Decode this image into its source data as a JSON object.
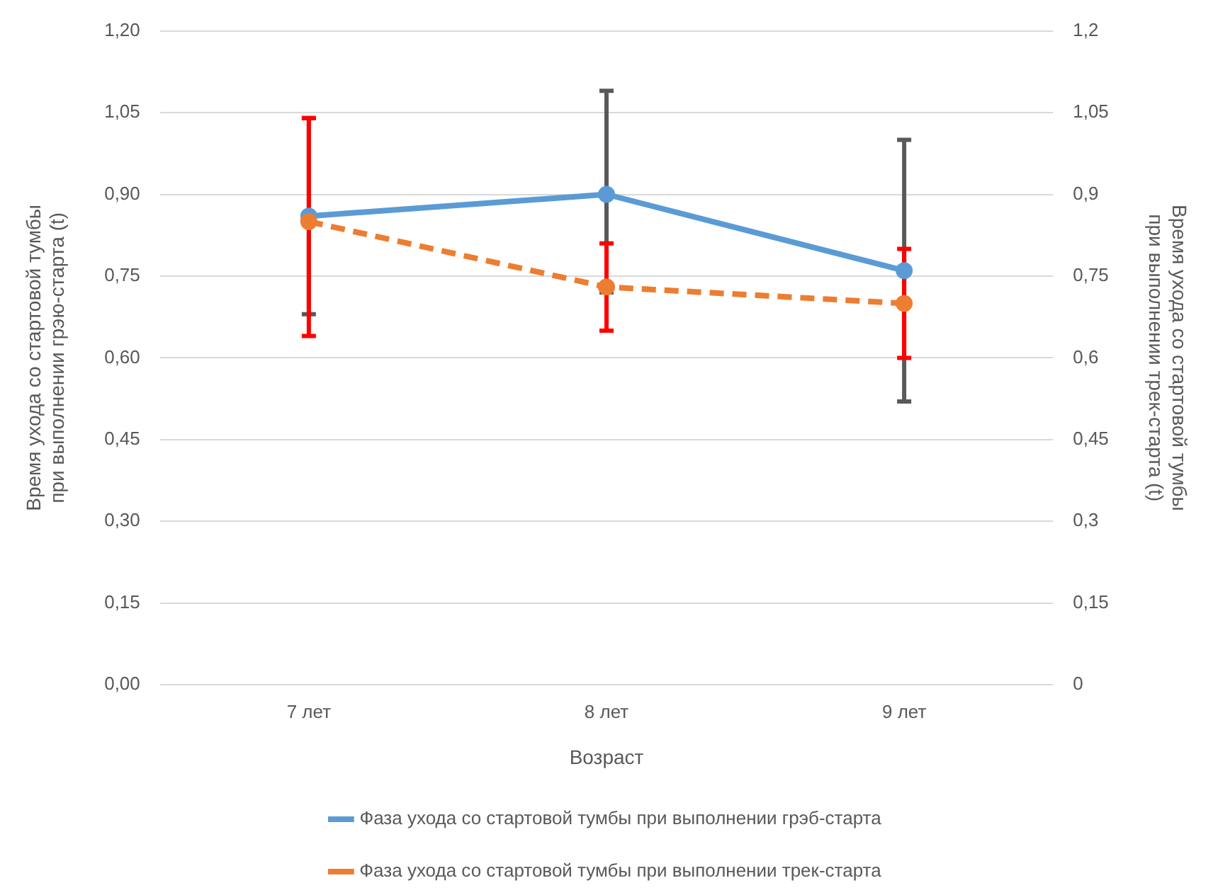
{
  "chart_data": {
    "type": "line",
    "categories": [
      "7 лет",
      "8 лет",
      "9 лет"
    ],
    "xlabel": "Возраст",
    "ylabel": "Время ухода со стартовой тумбы\nпри выполнении грэю-старта (t)",
    "y2label": "Время ухода со стартовой тумбы\nпри выполнении трек-старта (t)",
    "series": [
      {
        "name": "Фаза ухода со стартовой тумбы при выполнении грэб-старта",
        "color": "#5b9bd5",
        "values": [
          0.86,
          0.9,
          0.76
        ],
        "errors": [
          [
            0.68,
            1.04
          ],
          [
            0.72,
            1.09
          ],
          [
            0.52,
            1.0
          ]
        ],
        "line_style": "solid"
      },
      {
        "name": "Фаза ухода со стартовой тумбы при выполнении трек-старта",
        "color": "#ed7d31",
        "values": [
          0.85,
          0.73,
          0.7
        ],
        "errors": [
          [
            0.64,
            1.04
          ],
          [
            0.65,
            0.81
          ],
          [
            0.6,
            0.8
          ]
        ],
        "axis": "y2",
        "line_style": "dashed"
      }
    ],
    "ylim": [
      0,
      1.2
    ],
    "yticks": [
      {
        "value": 0,
        "label": "0,00"
      },
      {
        "value": 0.15,
        "label": "0,15"
      },
      {
        "value": 0.3,
        "label": "0,30"
      },
      {
        "value": 0.45,
        "label": "0,45"
      },
      {
        "value": 0.6,
        "label": "0,60"
      },
      {
        "value": 0.75,
        "label": "0,75"
      },
      {
        "value": 0.9,
        "label": "0,90"
      },
      {
        "value": 1.05,
        "label": "1,05"
      },
      {
        "value": 1.2,
        "label": "1,20"
      }
    ],
    "y2lim": [
      0,
      1.2
    ],
    "y2ticks": [
      {
        "value": 0,
        "label": "0"
      },
      {
        "value": 0.15,
        "label": "0,15"
      },
      {
        "value": 0.3,
        "label": "0,3"
      },
      {
        "value": 0.45,
        "label": "0,45"
      },
      {
        "value": 0.6,
        "label": "0,6"
      },
      {
        "value": 0.75,
        "label": "0,75"
      },
      {
        "value": 0.9,
        "label": "0,9"
      },
      {
        "value": 1.05,
        "label": "1,05"
      },
      {
        "value": 1.2,
        "label": "1,2"
      }
    ],
    "grid": "y",
    "legend": "bottom",
    "marker": "circle"
  }
}
